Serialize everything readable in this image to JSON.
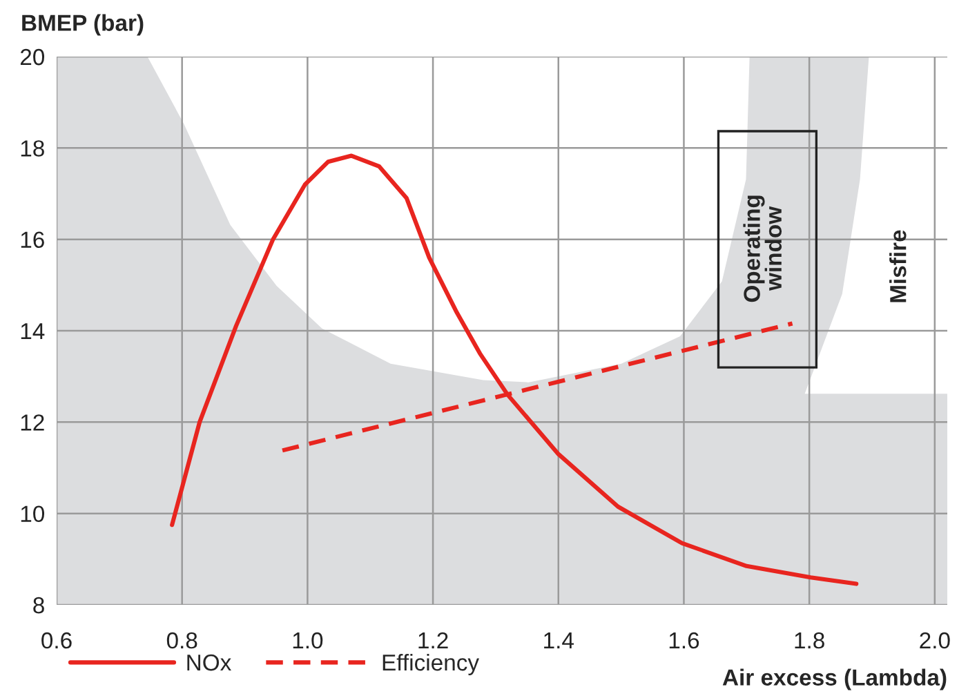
{
  "chart_data": {
    "type": "line",
    "xlabel": "Air excess (Lambda)",
    "ylabel": "BMEP (bar)",
    "series": [
      {
        "name": "NOx",
        "color": "#e8251f",
        "line_style": "solid",
        "x": [
          0.784,
          0.828,
          0.886,
          0.945,
          0.996,
          1.033,
          1.07,
          1.114,
          1.158,
          1.194,
          1.238,
          1.275,
          1.319,
          1.4,
          1.495,
          1.597,
          1.7,
          1.802,
          1.875
        ],
        "values": [
          9.75,
          12.0,
          14.1,
          16.0,
          17.2,
          17.7,
          17.83,
          17.6,
          16.9,
          15.6,
          14.4,
          13.5,
          12.6,
          11.3,
          10.15,
          9.35,
          8.85,
          8.6,
          8.46
        ]
      },
      {
        "name": "Efficiency",
        "color": "#e8251f",
        "line_style": "dashed",
        "x": [
          0.96,
          1.773
        ],
        "values": [
          11.38,
          14.16
        ]
      }
    ],
    "xlim": [
      0.6,
      2.02
    ],
    "xticks": [
      {
        "value": 0.6,
        "label": "0.6"
      },
      {
        "value": 0.8,
        "label": "0.8"
      },
      {
        "value": 1.0,
        "label": "1.0"
      },
      {
        "value": 1.2,
        "label": "1.2"
      },
      {
        "value": 1.4,
        "label": "1.4"
      },
      {
        "value": 1.6,
        "label": "1.6"
      },
      {
        "value": 1.8,
        "label": "1.8"
      },
      {
        "value": 2.0,
        "label": "2.0"
      }
    ],
    "ylim": [
      8,
      20
    ],
    "yticks": [
      8,
      10,
      12,
      14,
      16,
      18,
      20
    ],
    "grid": true,
    "legend": "bottom left",
    "marker": "none",
    "annotations": [
      "Operating\nwindow",
      "Misfire"
    ]
  }
}
